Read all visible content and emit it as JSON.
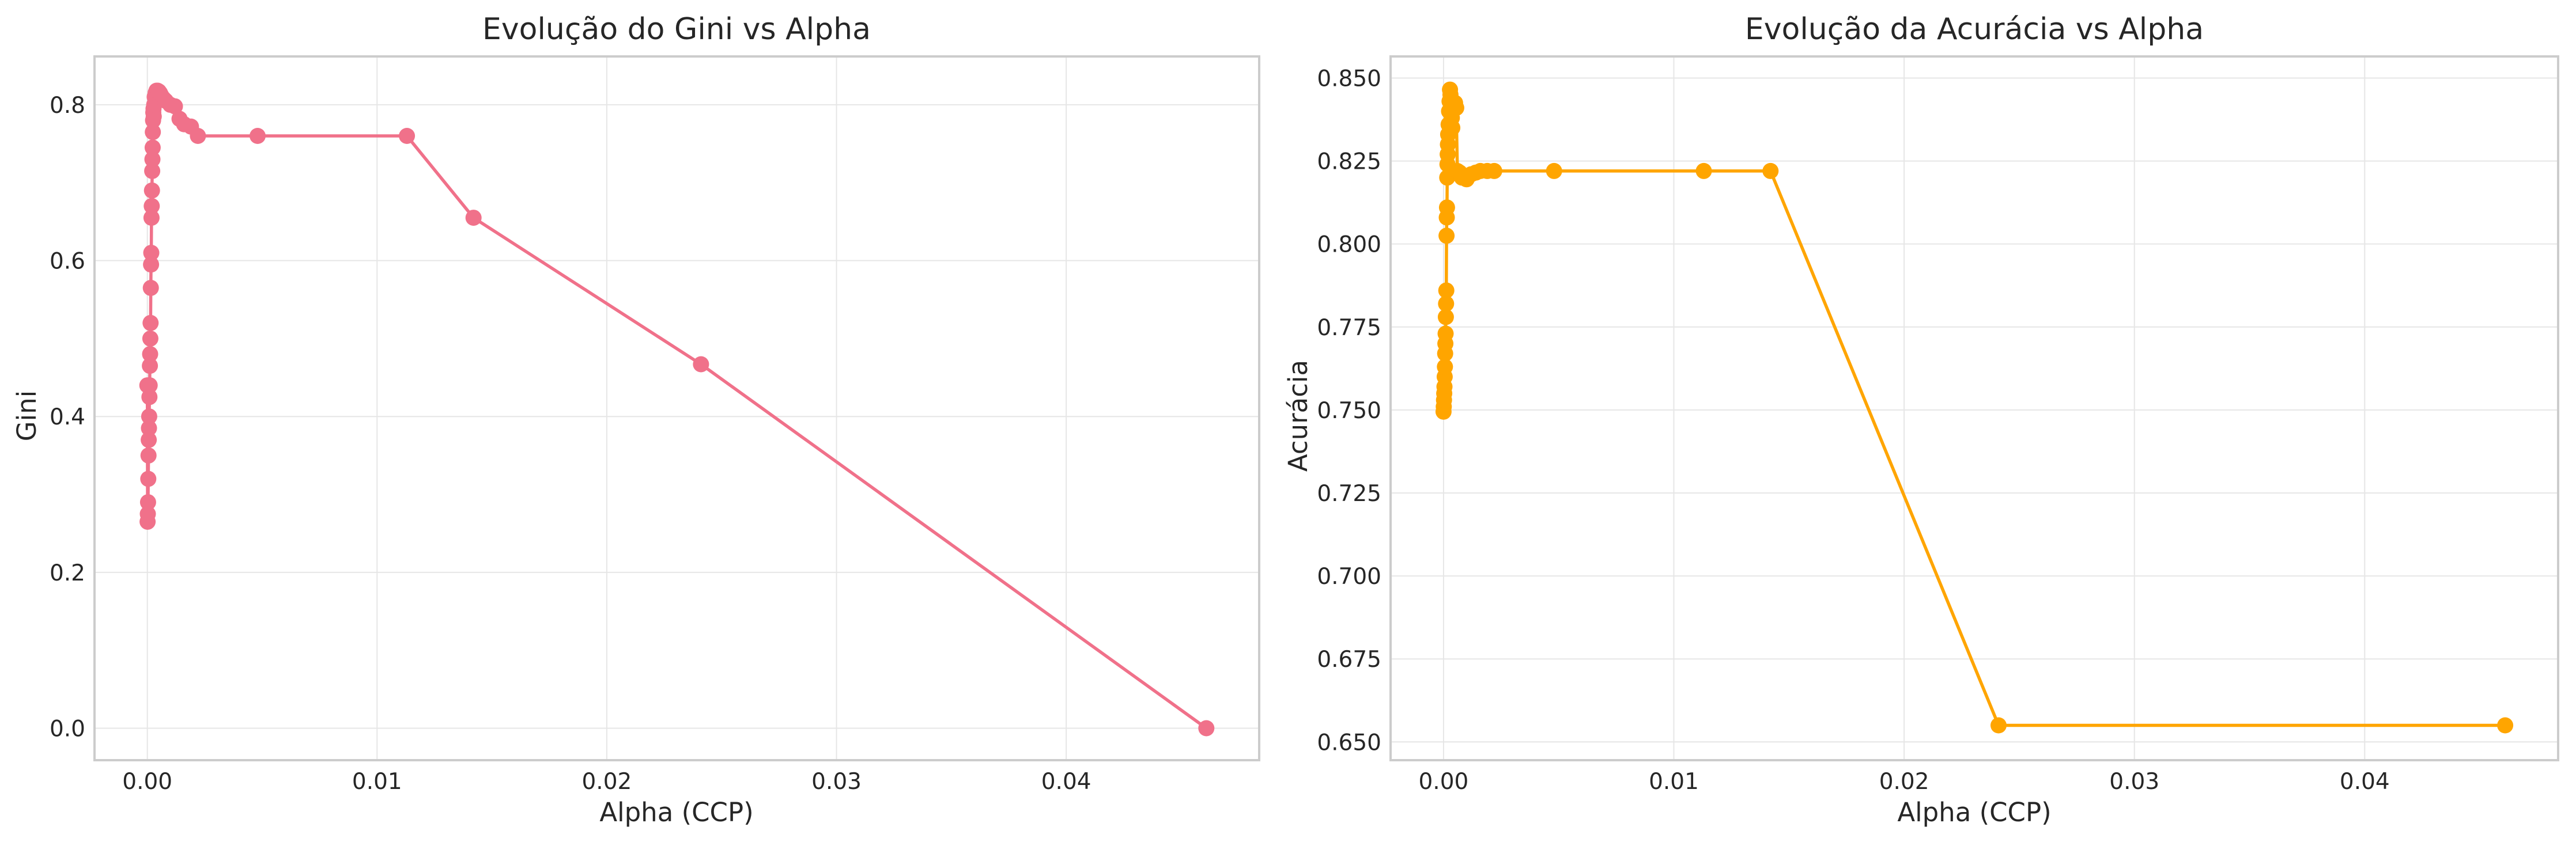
{
  "chart_data": [
    {
      "type": "line",
      "title": "Evolução do Gini vs Alpha",
      "xlabel": "Alpha (CCP)",
      "ylabel": "Gini",
      "xlim": [
        -0.0023,
        0.0484
      ],
      "ylim": [
        -0.041,
        0.862
      ],
      "xticks": [
        0.0,
        0.01,
        0.02,
        0.03,
        0.04
      ],
      "xtick_labels": [
        "0.00",
        "0.01",
        "0.02",
        "0.03",
        "0.04"
      ],
      "yticks": [
        0.0,
        0.2,
        0.4,
        0.6,
        0.8
      ],
      "ytick_labels": [
        "0.0",
        "0.2",
        "0.4",
        "0.6",
        "0.8"
      ],
      "grid": true,
      "color": "#f0718a",
      "series": [
        {
          "name": "Gini",
          "x": [
            0.0,
            1e-05,
            2e-05,
            3e-05,
            4e-05,
            5e-05,
            6e-05,
            7e-05,
            8e-05,
            9e-05,
            0.0001,
            0.00011,
            0.00012,
            0.00013,
            0.00014,
            0.00015,
            0.00016,
            0.00017,
            0.00018,
            0.00019,
            0.0002,
            0.00021,
            0.00022,
            0.00023,
            0.00024,
            0.00025,
            0.00026,
            0.00027,
            0.00028,
            0.0003,
            0.00032,
            0.00036,
            0.0004,
            0.00045,
            0.0005,
            0.00055,
            0.0006,
            0.0007,
            0.0008,
            0.001,
            0.0012,
            0.0014,
            0.0016,
            0.0019,
            0.0022,
            0.0048,
            0.0113,
            0.0142,
            0.0241,
            0.0461
          ],
          "y": [
            0.44,
            0.265,
            0.275,
            0.29,
            0.32,
            0.35,
            0.37,
            0.385,
            0.4,
            0.425,
            0.44,
            0.465,
            0.48,
            0.5,
            0.52,
            0.565,
            0.595,
            0.61,
            0.655,
            0.67,
            0.69,
            0.715,
            0.73,
            0.745,
            0.765,
            0.78,
            0.79,
            0.795,
            0.785,
            0.8,
            0.81,
            0.815,
            0.818,
            0.818,
            0.817,
            0.815,
            0.812,
            0.808,
            0.805,
            0.8,
            0.798,
            0.782,
            0.775,
            0.772,
            0.76,
            0.76,
            0.76,
            0.655,
            0.467,
            0.0
          ]
        }
      ]
    },
    {
      "type": "line",
      "title": "Evolução da Acurácia vs Alpha",
      "xlabel": "Alpha (CCP)",
      "ylabel": "Acurácia",
      "xlim": [
        -0.0023,
        0.0484
      ],
      "ylim": [
        0.6445,
        0.8565
      ],
      "xticks": [
        0.0,
        0.01,
        0.02,
        0.03,
        0.04
      ],
      "xtick_labels": [
        "0.00",
        "0.01",
        "0.02",
        "0.03",
        "0.04"
      ],
      "yticks": [
        0.65,
        0.675,
        0.7,
        0.725,
        0.75,
        0.775,
        0.8,
        0.825,
        0.85
      ],
      "ytick_labels": [
        "0.650",
        "0.675",
        "0.700",
        "0.725",
        "0.750",
        "0.775",
        "0.800",
        "0.825",
        "0.850"
      ],
      "grid": true,
      "color": "#ffa500",
      "series": [
        {
          "name": "Acurácia",
          "x": [
            0.0,
            1e-05,
            2e-05,
            3e-05,
            4e-05,
            5e-05,
            6e-05,
            7e-05,
            8e-05,
            9e-05,
            0.0001,
            0.00011,
            0.00012,
            0.00013,
            0.00014,
            0.00015,
            0.00016,
            0.00017,
            0.00018,
            0.00019,
            0.0002,
            0.00022,
            0.00024,
            0.00026,
            0.00028,
            0.0003,
            0.00032,
            0.00034,
            0.00036,
            0.00038,
            0.0004,
            0.00045,
            0.0005,
            0.00055,
            0.0006,
            0.0007,
            0.0008,
            0.001,
            0.0012,
            0.0014,
            0.0016,
            0.0019,
            0.0022,
            0.0048,
            0.0113,
            0.0142,
            0.0241,
            0.0461
          ],
          "y": [
            0.7495,
            0.751,
            0.753,
            0.755,
            0.757,
            0.76,
            0.763,
            0.767,
            0.77,
            0.773,
            0.778,
            0.782,
            0.786,
            0.8025,
            0.808,
            0.811,
            0.82,
            0.824,
            0.827,
            0.83,
            0.833,
            0.836,
            0.84,
            0.843,
            0.8465,
            0.845,
            0.843,
            0.84,
            0.838,
            0.835,
            0.843,
            0.842,
            0.8425,
            0.841,
            0.822,
            0.8215,
            0.82,
            0.8195,
            0.821,
            0.8215,
            0.822,
            0.822,
            0.822,
            0.822,
            0.822,
            0.822,
            0.655,
            0.655
          ]
        }
      ]
    }
  ]
}
